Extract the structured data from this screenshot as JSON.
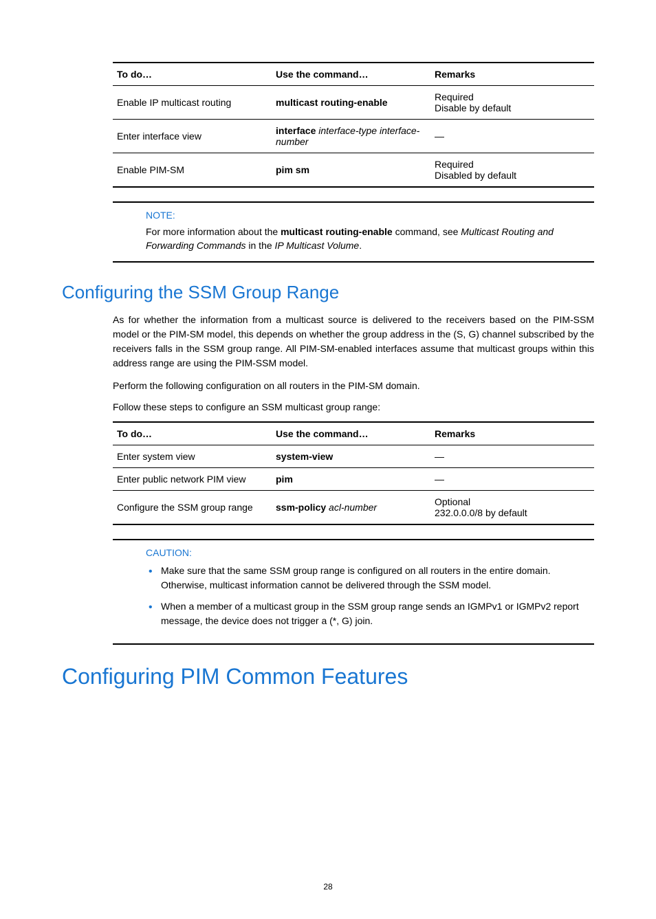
{
  "table1": {
    "headers": [
      "To do…",
      "Use the command…",
      "Remarks"
    ],
    "rows": [
      {
        "todo": "Enable IP multicast routing",
        "cmd_bold": "multicast routing-enable",
        "cmd_italic": "",
        "cmd_italic2": "",
        "remark1": "Required",
        "remark2": "Disable by default"
      },
      {
        "todo": "Enter interface view",
        "cmd_bold": "interface",
        "cmd_italic": " interface-type interface-number",
        "remark1": "—",
        "remark2": ""
      },
      {
        "todo": "Enable PIM-SM",
        "cmd_bold": "pim sm",
        "cmd_italic": "",
        "remark1": "Required",
        "remark2": "Disabled by default"
      }
    ]
  },
  "note": {
    "label": "NOTE:",
    "text_pre": "For more information about the ",
    "text_bold": "multicast routing-enable",
    "text_mid": " command, see ",
    "text_italic1": "Multicast Routing and Forwarding Commands",
    "text_mid2": " in the ",
    "text_italic2": "IP Multicast Volume",
    "text_end": "."
  },
  "section1": {
    "heading": "Configuring the SSM Group Range",
    "para1": "As for whether the information from a multicast source is delivered to the receivers based on the PIM-SSM model or the PIM-SM model, this depends on whether the group address in the (S, G) channel subscribed by the receivers falls in the SSM group range. All PIM-SM-enabled interfaces assume that multicast groups within this address range are using the PIM-SSM model.",
    "para2": "Perform the following configuration on all routers in the PIM-SM domain.",
    "para3": "Follow these steps to configure an SSM multicast group range:"
  },
  "table2": {
    "headers": [
      "To do…",
      "Use the command…",
      "Remarks"
    ],
    "rows": [
      {
        "todo": "Enter system view",
        "cmd_bold": "system-view",
        "cmd_italic": "",
        "remark1": "—",
        "remark2": ""
      },
      {
        "todo": "Enter public network PIM view",
        "cmd_bold": "pim",
        "cmd_italic": "",
        "remark1": "—",
        "remark2": ""
      },
      {
        "todo": "Configure the SSM group range",
        "cmd_bold": "ssm-policy",
        "cmd_italic": " acl-number",
        "remark1": "Optional",
        "remark2": "232.0.0.0/8 by default"
      }
    ]
  },
  "caution": {
    "label": "CAUTION:",
    "bullets": [
      "Make sure that the same SSM group range is configured on all routers in the entire domain. Otherwise, multicast information cannot be delivered through the SSM model.",
      "When a member of a multicast group in the SSM group range sends an IGMPv1 or IGMPv2 report message, the device does not trigger a (*, G) join."
    ]
  },
  "section2": {
    "heading": "Configuring PIM Common Features"
  },
  "page_number": "28"
}
